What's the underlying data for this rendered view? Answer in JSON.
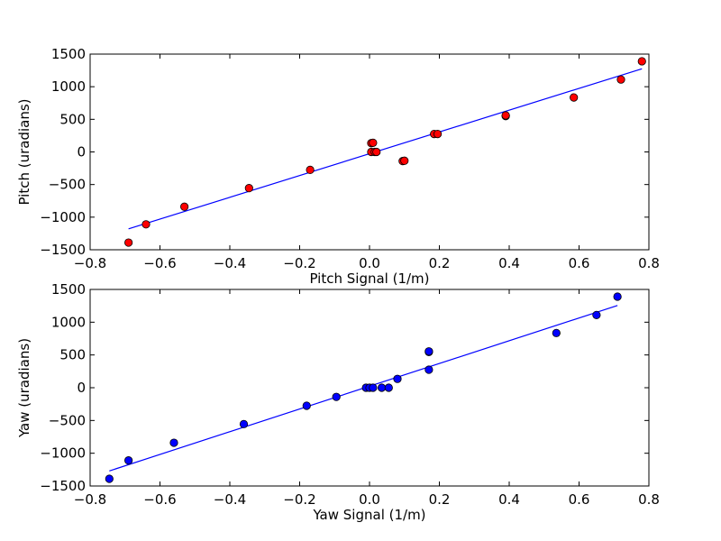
{
  "colors": {
    "frame": "#000000",
    "pitch_marker": "#ff0000",
    "yaw_marker": "#0000ff",
    "fit_line": "#0000ff"
  },
  "chart_data": [
    {
      "type": "scatter",
      "xlabel": "Pitch Signal (1/m)",
      "ylabel": "Pitch (uradians)",
      "xlim": [
        -0.8,
        0.8
      ],
      "ylim": [
        -1500,
        1500
      ],
      "xticks": [
        "−0.8",
        "−0.6",
        "−0.4",
        "−0.2",
        "0.0",
        "0.2",
        "0.4",
        "0.6",
        "0.8"
      ],
      "yticks": [
        "−1500",
        "−1000",
        "−500",
        "0",
        "500",
        "1000",
        "1500"
      ],
      "series": [
        {
          "marker": "circle",
          "color": "#ff0000",
          "points": [
            [
              -0.69,
              -1390
            ],
            [
              -0.64,
              -1110
            ],
            [
              -0.53,
              -840
            ],
            [
              -0.345,
              -555
            ],
            [
              -0.17,
              -275
            ],
            [
              0.005,
              135
            ],
            [
              0.01,
              140
            ],
            [
              0.005,
              0
            ],
            [
              0.015,
              0
            ],
            [
              0.02,
              0
            ],
            [
              0.095,
              -140
            ],
            [
              0.1,
              -135
            ],
            [
              0.185,
              275
            ],
            [
              0.195,
              275
            ],
            [
              0.39,
              550
            ],
            [
              0.39,
              560
            ],
            [
              0.585,
              835
            ],
            [
              0.72,
              1110
            ],
            [
              0.78,
              1390
            ]
          ]
        }
      ],
      "fit_line": {
        "x": [
          -0.69,
          0.78
        ],
        "y": [
          -1180,
          1275
        ]
      }
    },
    {
      "type": "scatter",
      "xlabel": "Yaw Signal (1/m)",
      "ylabel": "Yaw (uradians)",
      "xlim": [
        -0.8,
        0.8
      ],
      "ylim": [
        -1500,
        1500
      ],
      "xticks": [
        "−0.8",
        "−0.6",
        "−0.4",
        "−0.2",
        "0.0",
        "0.2",
        "0.4",
        "0.6",
        "0.8"
      ],
      "yticks": [
        "−1500",
        "−1000",
        "−500",
        "0",
        "500",
        "1000",
        "1500"
      ],
      "series": [
        {
          "marker": "circle",
          "color": "#0000ff",
          "points": [
            [
              -0.745,
              -1390
            ],
            [
              -0.69,
              -1110
            ],
            [
              -0.56,
              -840
            ],
            [
              -0.36,
              -555
            ],
            [
              -0.18,
              -275
            ],
            [
              -0.095,
              -140
            ],
            [
              -0.01,
              0
            ],
            [
              0.0,
              0
            ],
            [
              0.01,
              0
            ],
            [
              0.035,
              0
            ],
            [
              0.055,
              0
            ],
            [
              0.08,
              135
            ],
            [
              0.17,
              275
            ],
            [
              0.17,
              545
            ],
            [
              0.17,
              555
            ],
            [
              0.535,
              835
            ],
            [
              0.65,
              1110
            ],
            [
              0.71,
              1390
            ]
          ]
        }
      ],
      "fit_line": {
        "x": [
          -0.745,
          0.71
        ],
        "y": [
          -1270,
          1255
        ]
      }
    }
  ]
}
